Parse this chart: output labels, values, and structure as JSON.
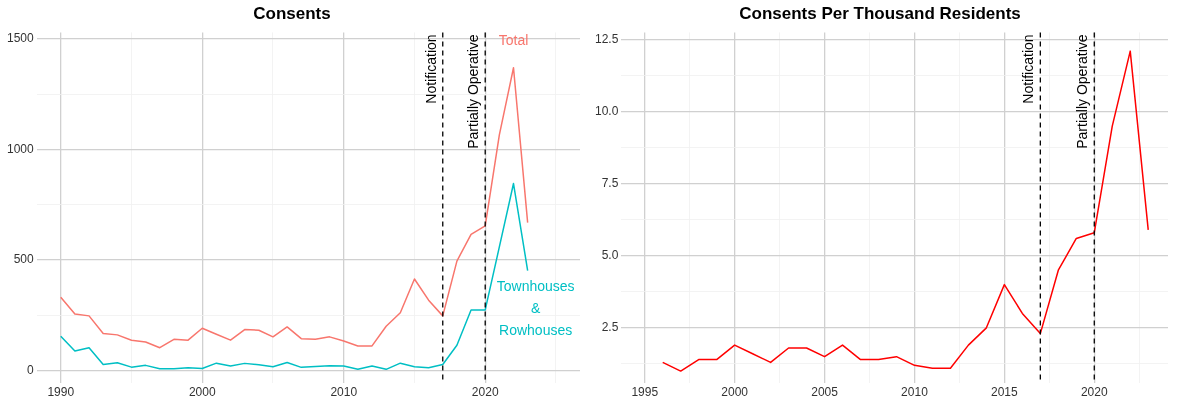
{
  "chart_data": [
    {
      "type": "line",
      "title": "Consents",
      "legend": false,
      "grid": true,
      "x": [
        1990,
        1991,
        1992,
        1993,
        1994,
        1995,
        1996,
        1997,
        1998,
        1999,
        2000,
        2001,
        2002,
        2003,
        2004,
        2005,
        2006,
        2007,
        2008,
        2009,
        2010,
        2011,
        2012,
        2013,
        2014,
        2015,
        2016,
        2017,
        2018,
        2019,
        2020,
        2021,
        2022,
        2023
      ],
      "series": [
        {
          "name": "Total",
          "color": "#f8766d",
          "values": [
            331,
            255,
            247,
            167,
            161,
            137,
            129,
            103,
            141,
            137,
            191,
            164,
            137,
            185,
            182,
            152,
            197,
            144,
            141,
            152,
            133,
            111,
            111,
            200,
            261,
            414,
            318,
            247,
            495,
            616,
            654,
            1066,
            1370,
            669
          ]
        },
        {
          "name": "Townhouses & Rowhouses",
          "color": "#00bfc4",
          "values": [
            155,
            88,
            103,
            27,
            35,
            15,
            23,
            8,
            8,
            12,
            9,
            33,
            20,
            32,
            26,
            17,
            36,
            14,
            18,
            21,
            20,
            5,
            20,
            5,
            33,
            17,
            12,
            27,
            114,
            274,
            274,
            559,
            846,
            452
          ]
        }
      ],
      "xlim": [
        1988.3,
        2026.7
      ],
      "xticks": [
        1990,
        {
          "value": 1995,
          "label": null
        },
        2000,
        {
          "value": 2005,
          "label": null
        },
        2010,
        {
          "value": 2015,
          "label": null
        },
        2020,
        {
          "value": 2025,
          "label": null
        }
      ],
      "ylim": [
        -55,
        1530
      ],
      "yticks": [
        0,
        {
          "value": 250,
          "label": null
        },
        500,
        {
          "value": 750,
          "label": null
        },
        1000,
        {
          "value": 1250,
          "label": null
        },
        1500
      ],
      "ref_lines": [
        {
          "axis": "x",
          "value": 2017,
          "label": "Notification",
          "color": "#000000",
          "line_style": "dashed"
        },
        {
          "axis": "x",
          "value": 2020,
          "label": "Partially Operative",
          "color": "#000000",
          "line_style": "dashed"
        }
      ]
    },
    {
      "type": "line",
      "title": "Consents Per Thousand Residents",
      "legend": false,
      "grid": true,
      "x": [
        1996,
        1997,
        1998,
        1999,
        2000,
        2001,
        2002,
        2003,
        2004,
        2005,
        2006,
        2007,
        2008,
        2009,
        2010,
        2011,
        2012,
        2013,
        2014,
        2015,
        2016,
        2017,
        2018,
        2019,
        2020,
        2021,
        2022,
        2023
      ],
      "series": [
        {
          "color": "#ff0000",
          "values": [
            1.3,
            1.0,
            1.4,
            1.4,
            1.9,
            1.6,
            1.3,
            1.8,
            1.8,
            1.5,
            1.9,
            1.4,
            1.4,
            1.5,
            1.2,
            1.1,
            1.1,
            1.9,
            2.5,
            4.0,
            3.0,
            2.3,
            4.5,
            5.6,
            5.8,
            9.5,
            12.1,
            5.9
          ]
        }
      ],
      "xlim": [
        1993.7,
        2024.1
      ],
      "xticks": [
        1995,
        {
          "value": 1997.5,
          "label": null
        },
        2000,
        {
          "value": 2002.5,
          "label": null
        },
        2005,
        {
          "value": 2007.5,
          "label": null
        },
        2010,
        {
          "value": 2012.5,
          "label": null
        },
        2015,
        {
          "value": 2017.5,
          "label": null
        },
        2020,
        {
          "value": 2022.5,
          "label": null
        }
      ],
      "ylim": [
        0.6,
        12.75
      ],
      "yticks": [
        {
          "value": 1.25,
          "label": null
        },
        {
          "value": 2.5,
          "label": "2.5"
        },
        {
          "value": 3.75,
          "label": null
        },
        {
          "value": 5,
          "label": "5.0"
        },
        {
          "value": 6.25,
          "label": null
        },
        {
          "value": 7.5,
          "label": "7.5"
        },
        {
          "value": 8.75,
          "label": null
        },
        {
          "value": 10,
          "label": "10.0"
        },
        {
          "value": 11.25,
          "label": null
        },
        {
          "value": 12.5,
          "label": "12.5"
        }
      ],
      "ref_lines": [
        {
          "axis": "x",
          "value": 2017,
          "label": "Notification",
          "color": "#000000",
          "line_style": "dashed"
        },
        {
          "axis": "x",
          "value": 2020,
          "label": "Partially Operative",
          "color": "#000000",
          "line_style": "dashed"
        }
      ]
    }
  ]
}
